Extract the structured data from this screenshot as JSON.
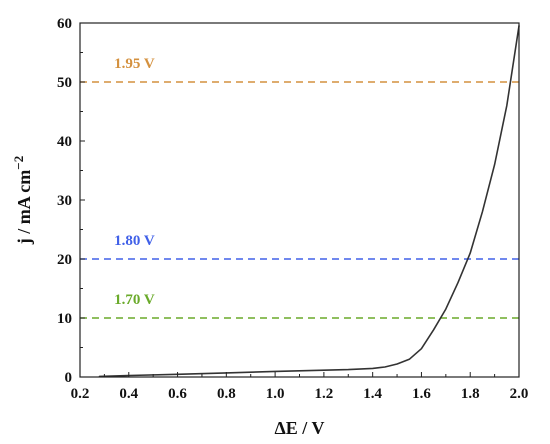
{
  "chart_data": {
    "type": "line",
    "title": "",
    "xlabel": "ΔE / V",
    "ylabel_main": "j / mA cm",
    "ylabel_sup": "−2",
    "xlim": [
      0.2,
      2.0
    ],
    "ylim": [
      0,
      60
    ],
    "x_ticks": [
      0.2,
      0.4,
      0.6,
      0.8,
      1.0,
      1.2,
      1.4,
      1.6,
      1.8,
      2.0
    ],
    "x_tick_labels": [
      "0.2",
      "0.4",
      "0.6",
      "0.8",
      "1.0",
      "1.2",
      "1.4",
      "1.6",
      "1.8",
      "2.0"
    ],
    "y_ticks": [
      0,
      10,
      20,
      30,
      40,
      50,
      60
    ],
    "y_tick_labels": [
      "0",
      "10",
      "20",
      "30",
      "40",
      "50",
      "60"
    ],
    "grid": false,
    "legend": "none",
    "series": [
      {
        "color": "#333333",
        "x": [
          0.28,
          0.4,
          0.6,
          0.8,
          1.0,
          1.2,
          1.3,
          1.4,
          1.45,
          1.5,
          1.55,
          1.6,
          1.65,
          1.7,
          1.75,
          1.8,
          1.85,
          1.9,
          1.95,
          2.0
        ],
        "y": [
          0.1,
          0.25,
          0.45,
          0.7,
          0.95,
          1.15,
          1.25,
          1.45,
          1.7,
          2.2,
          3.0,
          4.8,
          8.0,
          11.5,
          16.0,
          21.0,
          28.0,
          36.0,
          46.0,
          59.5
        ]
      }
    ],
    "reference_lines": [
      {
        "y": 50,
        "label": "1.95 V",
        "color": "#D4913F"
      },
      {
        "y": 20,
        "label": "1.80 V",
        "color": "#4060E8"
      },
      {
        "y": 10,
        "label": "1.70 V",
        "color": "#6AAA2A"
      }
    ]
  }
}
